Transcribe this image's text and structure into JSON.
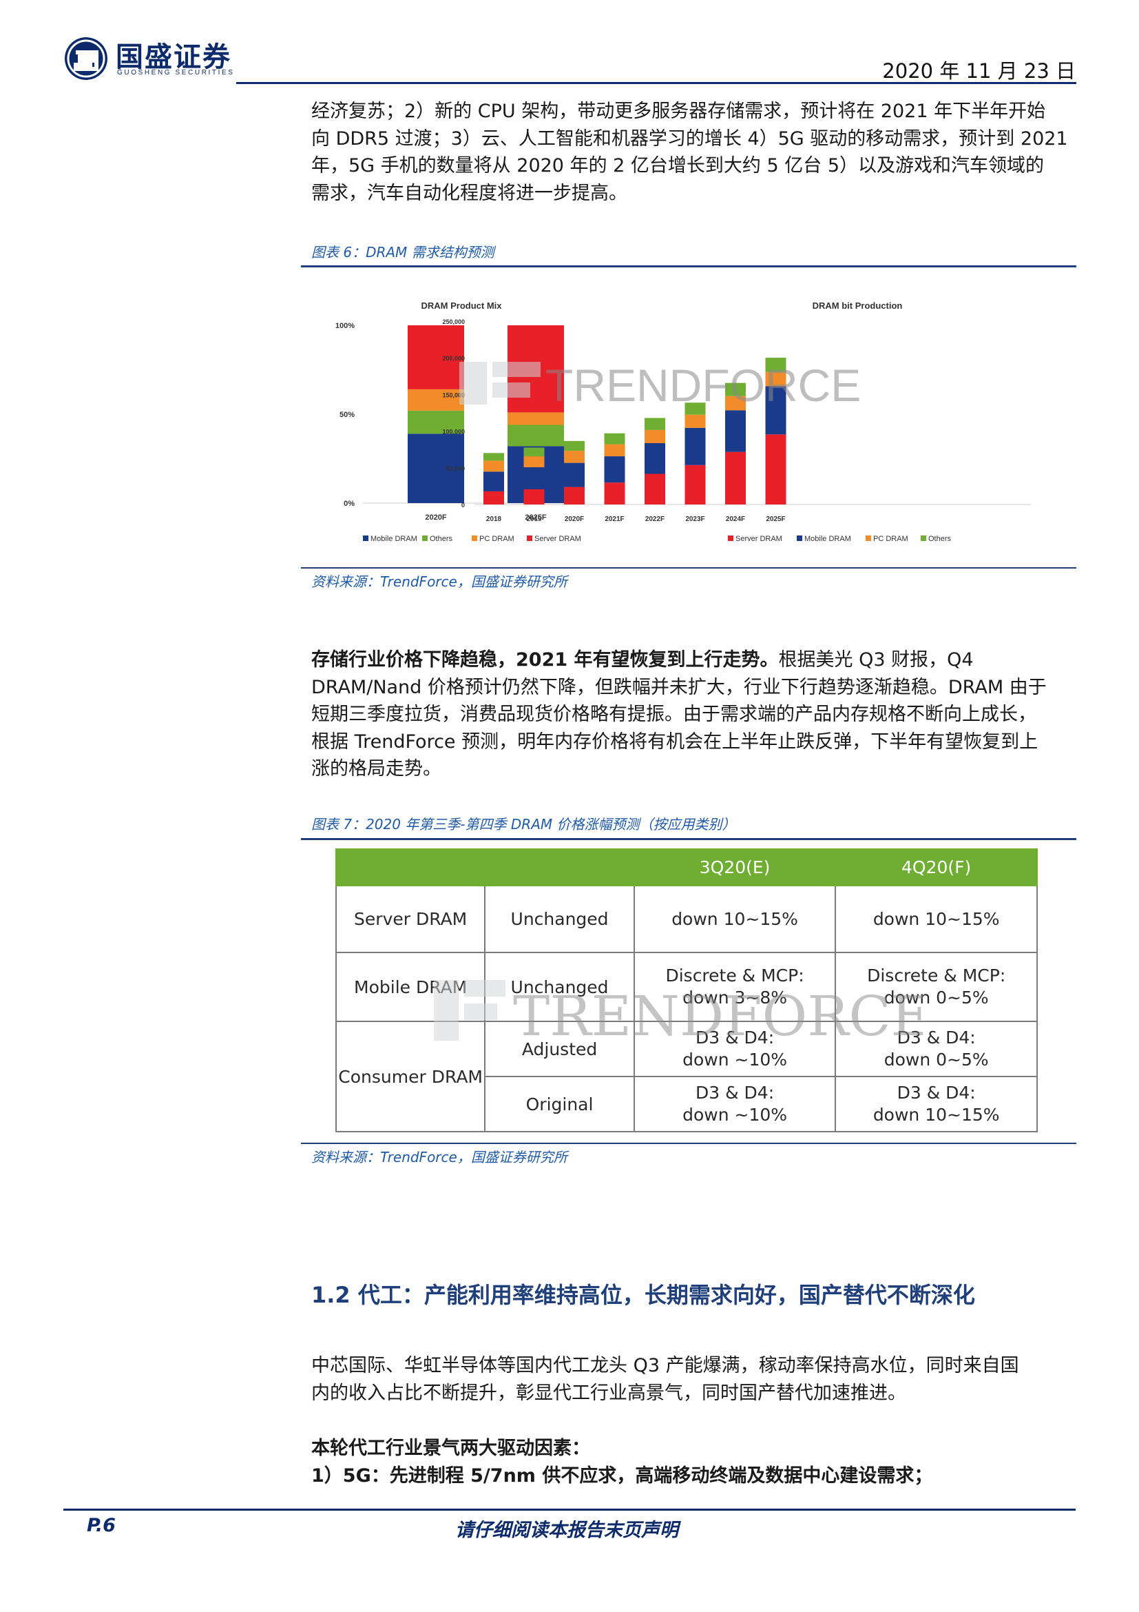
{
  "header": {
    "logo_cn": "国盛证券",
    "logo_en": "GUOSHENG SECURITIES",
    "date": "2020 年 11 月 23 日"
  },
  "intro_lines": [
    "经济复苏；2）新的 CPU 架构，带动更多服务器存储需求，预计将在 2021 年下半年开始",
    "向 DDR5 过渡；3）云、人工智能和机器学习的增长 4）5G 驱动的移动需求，预计到 2021",
    "年，5G 手机的数量将从 2020 年的 2 亿台增长到大约 5 亿台 5）以及游戏和汽车领域的",
    "需求，汽车自动化程度将进一步提高。"
  ],
  "figure6": {
    "caption": "图表 6：DRAM 需求结构预测",
    "source": "资料来源：TrendForce，国盛证券研究所",
    "watermark": "TRENDFORCE"
  },
  "chart_data": [
    {
      "type": "bar",
      "stacked": true,
      "percent": true,
      "title": "DRAM Product Mix",
      "categories": [
        "2020F",
        "2025F"
      ],
      "series": [
        {
          "name": "Mobile DRAM",
          "color": "#1a3a8c",
          "values": [
            39,
            32
          ]
        },
        {
          "name": "Others",
          "color": "#6fae32",
          "values": [
            13,
            12
          ]
        },
        {
          "name": "PC DRAM",
          "color": "#f28c28",
          "values": [
            12,
            7
          ]
        },
        {
          "name": "Server DRAM",
          "color": "#e8202a",
          "values": [
            36,
            49
          ]
        }
      ],
      "yticks": [
        "0%",
        "50%",
        "100%"
      ],
      "ylim": [
        0,
        100
      ],
      "legend": "bottom"
    },
    {
      "type": "bar",
      "stacked": true,
      "title": "DRAM bit Production",
      "categories": [
        "2018",
        "2019",
        "2020F",
        "2021F",
        "2022F",
        "2023F",
        "2024F",
        "2025F"
      ],
      "series": [
        {
          "name": "Server DRAM",
          "color": "#e8202a",
          "values": [
            12,
            14,
            16,
            20,
            28,
            36,
            48,
            64
          ]
        },
        {
          "name": "Mobile DRAM",
          "color": "#1a3a8c",
          "values": [
            18,
            20,
            22,
            24,
            28,
            34,
            38,
            44
          ]
        },
        {
          "name": "PC DRAM",
          "color": "#f28c28",
          "values": [
            10,
            10,
            11,
            11,
            12,
            12,
            13,
            13
          ]
        },
        {
          "name": "Others",
          "color": "#6fae32",
          "values": [
            7,
            8,
            9,
            10,
            11,
            11,
            12,
            13
          ]
        }
      ],
      "yticks": [
        "0",
        "50,000",
        "100,000",
        "150,000",
        "200,000",
        "250,000"
      ],
      "ylim": [
        0,
        250000
      ],
      "legend": "bottom"
    }
  ],
  "para2": {
    "bold_lead": "存储行业价格下降趋稳，2021 年有望恢复到上行走势。",
    "lines": [
      "根据美光 Q3 财报，Q4",
      "DRAM/Nand 价格预计仍然下降，但跌幅并未扩大，行业下行趋势逐渐趋稳。DRAM 由于",
      "短期三季度拉货，消费品现货价格略有提振。由于需求端的产品内存规格不断向上成长，",
      "根据 TrendForce 预测，明年内存价格将有机会在上半年止跌反弹，下半年有望恢复到上",
      "涨的格局走势。"
    ]
  },
  "figure7": {
    "caption": "图表 7：2020 年第三季-第四季 DRAM 价格涨幅预测（按应用类别）",
    "source": "资料来源：TrendForce，国盛证券研究所",
    "watermark": "TRENDFORCE",
    "headers": [
      "3Q20(E)",
      "4Q20(F)"
    ],
    "rows": {
      "server": {
        "cat": "Server DRAM",
        "sub": "Unchanged",
        "q3": "down 10~15%",
        "q4": "down 10~15%"
      },
      "mobile": {
        "cat": "Mobile DRAM",
        "sub": "Unchanged",
        "q3": [
          "Discrete & MCP:",
          "down 3~8%"
        ],
        "q4": [
          "Discrete & MCP:",
          "down 0~5%"
        ]
      },
      "consumer_adj": {
        "cat": "Consumer DRAM",
        "sub": "Adjusted",
        "q3": [
          "D3 & D4:",
          "down ~10%"
        ],
        "q4": [
          "D3 & D4:",
          "down 0~5%"
        ]
      },
      "consumer_orig": {
        "sub": "Original",
        "q3": [
          "D3 & D4:",
          "down ~10%"
        ],
        "q4": [
          "D3 & D4:",
          "down 10~15%"
        ]
      }
    }
  },
  "section": {
    "number": "1.2",
    "title": "代工：产能利用率维持高位，长期需求向好，国产替代不断深化"
  },
  "para3_lines": [
    "中芯国际、华虹半导体等国内代工龙头 Q3 产能爆满，稼动率保持高水位，同时来自国",
    "内的收入占比不断提升，彰显代工行业高景气，同时国产替代加速推进。"
  ],
  "drivers": {
    "title": "本轮代工行业景气两大驱动因素：",
    "item1": "1）5G：先进制程 5/7nm 供不应求，高端移动终端及数据中心建设需求；"
  },
  "footer": {
    "page": "P.6",
    "note": "请仔细阅读本报告末页声明"
  }
}
